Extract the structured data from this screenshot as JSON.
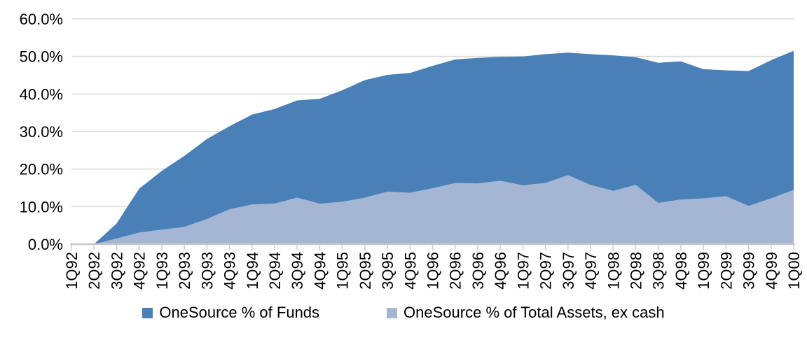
{
  "chart_data": {
    "type": "area",
    "mode": "overlapping",
    "title": "",
    "xlabel": "",
    "ylabel": "",
    "ylim": [
      0,
      60
    ],
    "y_tick_step": 10,
    "y_tick_labels": [
      "0.0%",
      "10.0%",
      "20.0%",
      "30.0%",
      "40.0%",
      "50.0%",
      "60.0%"
    ],
    "grid": true,
    "legend_position": "bottom",
    "categories": [
      "1Q92",
      "2Q92",
      "3Q92",
      "4Q92",
      "1Q93",
      "2Q93",
      "3Q93",
      "4Q93",
      "1Q94",
      "2Q94",
      "3Q94",
      "4Q94",
      "1Q95",
      "2Q95",
      "3Q95",
      "4Q95",
      "1Q96",
      "2Q96",
      "3Q96",
      "4Q96",
      "1Q97",
      "2Q97",
      "3Q97",
      "4Q97",
      "1Q98",
      "2Q98",
      "3Q98",
      "4Q98",
      "1Q99",
      "2Q99",
      "3Q99",
      "4Q99",
      "1Q00"
    ],
    "series": [
      {
        "name": "OneSource % of Funds",
        "color": "#4a80b8",
        "values": [
          0.0,
          0.0,
          5.5,
          14.8,
          19.5,
          23.5,
          28.0,
          31.4,
          34.5,
          36.0,
          38.3,
          38.7,
          41.0,
          43.7,
          45.1,
          45.6,
          47.5,
          49.2,
          49.6,
          49.9,
          50.0,
          50.6,
          51.0,
          50.6,
          50.3,
          49.8,
          48.3,
          48.7,
          46.6,
          46.3,
          46.1,
          49.0,
          51.5
        ]
      },
      {
        "name": "OneSource % of Total Assets, ex cash",
        "color": "#a4b6d3",
        "values": [
          0.0,
          0.0,
          1.5,
          3.1,
          3.9,
          4.6,
          6.7,
          9.3,
          10.6,
          10.8,
          12.4,
          10.8,
          11.3,
          12.4,
          14.0,
          13.7,
          14.9,
          16.3,
          16.2,
          16.9,
          15.7,
          16.3,
          18.4,
          15.8,
          14.2,
          15.8,
          11.0,
          11.9,
          12.2,
          12.8,
          10.2,
          12.2,
          14.5
        ]
      }
    ]
  },
  "style": {
    "gridline_color": "#d9d9d9",
    "axis_color": "#c9c7c7",
    "tick_color": "#cfcdcd",
    "text_color": "#000000"
  }
}
